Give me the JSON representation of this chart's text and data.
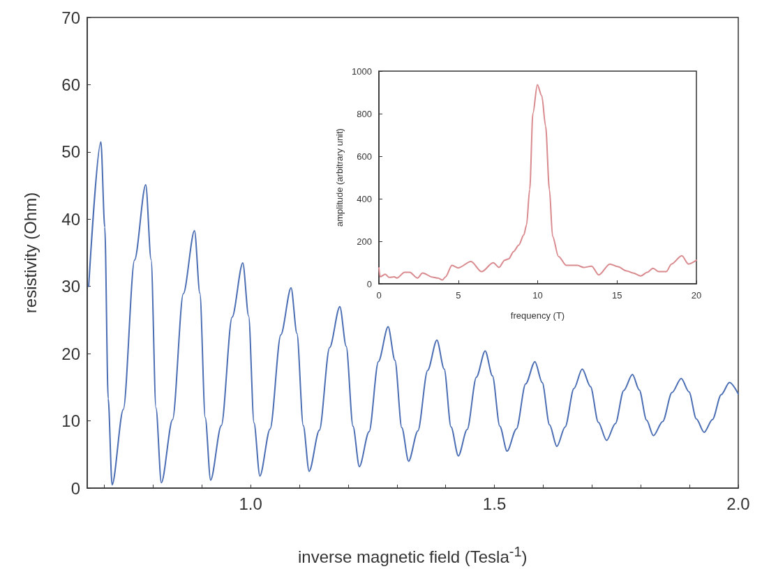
{
  "chart_data": [
    {
      "type": "line",
      "xlabel": "inverse magnetic field (Tesla$^{-1}$)",
      "ylabel": "resistivity (Ohm)",
      "xlim": [
        0.665,
        2.0
      ],
      "xticks": [
        {
          "value": 0.7,
          "label": null
        },
        {
          "value": 0.8,
          "label": null
        },
        {
          "value": 0.9,
          "label": null
        },
        {
          "value": 1.0,
          "label": "1.0"
        },
        {
          "value": 1.1,
          "label": null
        },
        {
          "value": 1.2,
          "label": null
        },
        {
          "value": 1.3,
          "label": null
        },
        {
          "value": 1.4,
          "label": null
        },
        {
          "value": 1.5,
          "label": "1.5"
        },
        {
          "value": 1.6,
          "label": null
        },
        {
          "value": 1.7,
          "label": null
        },
        {
          "value": 1.8,
          "label": null
        },
        {
          "value": 1.9,
          "label": null
        },
        {
          "value": 2.0,
          "label": "2.0"
        }
      ],
      "ylim": [
        0,
        70
      ],
      "yticks": [
        0,
        10,
        20,
        30,
        40,
        50,
        60,
        70
      ],
      "series": [
        {
          "color": "#4a6db3",
          "x": [
            0.668,
            0.693,
            0.701,
            0.708,
            0.716,
            0.739,
            0.762,
            0.785,
            0.796,
            0.806,
            0.817,
            0.84,
            0.862,
            0.885,
            0.896,
            0.907,
            0.918,
            0.94,
            0.962,
            0.984,
            0.996,
            1.007,
            1.019,
            1.04,
            1.062,
            1.083,
            1.095,
            1.108,
            1.12,
            1.141,
            1.162,
            1.183,
            1.196,
            1.21,
            1.223,
            1.243,
            1.262,
            1.282,
            1.296,
            1.31,
            1.324,
            1.343,
            1.363,
            1.382,
            1.397,
            1.411,
            1.426,
            1.444,
            1.463,
            1.481,
            1.496,
            1.511,
            1.526,
            1.545,
            1.564,
            1.583,
            1.598,
            1.613,
            1.628,
            1.645,
            1.663,
            1.68,
            1.697,
            1.713,
            1.73,
            1.748,
            1.765,
            1.783,
            1.797,
            1.812,
            1.826,
            1.845,
            1.864,
            1.883,
            1.899,
            1.914,
            1.93,
            1.947,
            1.965,
            1.982,
            2.0
          ],
          "values": [
            30,
            51.5,
            38.8,
            13.3,
            0.5,
            11.7,
            33.9,
            45.1,
            34.0,
            11.9,
            0.8,
            10.2,
            28.9,
            38.3,
            29.0,
            10.5,
            1.2,
            9.3,
            25.4,
            33.5,
            25.6,
            9.7,
            1.8,
            8.8,
            22.8,
            29.8,
            23.0,
            9.3,
            2.5,
            8.6,
            20.9,
            27.0,
            21.1,
            9.2,
            3.2,
            8.4,
            18.8,
            24.0,
            19.0,
            9.0,
            4.0,
            8.5,
            17.5,
            22.0,
            17.7,
            9.1,
            4.8,
            8.7,
            16.5,
            20.4,
            16.7,
            9.2,
            5.5,
            8.8,
            15.5,
            18.8,
            15.7,
            9.4,
            6.2,
            9.1,
            14.8,
            17.7,
            15.1,
            9.8,
            7.1,
            9.6,
            14.5,
            16.9,
            14.6,
            10.1,
            7.8,
            9.9,
            14.2,
            16.3,
            14.3,
            10.3,
            8.3,
            10.2,
            13.9,
            15.7,
            14.0
          ]
        }
      ]
    },
    {
      "type": "line",
      "xlabel": "frequency (T)",
      "ylabel": "amplitude (arbitrary unit)",
      "xlim": [
        0,
        20
      ],
      "xticks": [
        0,
        5,
        10,
        15,
        20
      ],
      "ylim": [
        0,
        1000
      ],
      "yticks": [
        0,
        200,
        400,
        600,
        800,
        1000
      ],
      "series": [
        {
          "color": "#d98a8e",
          "x": [
            0,
            0.08,
            0.4,
            0.65,
            0.97,
            1.13,
            1.62,
            1.94,
            2.43,
            2.75,
            3.4,
            3.72,
            4.0,
            4.2,
            4.6,
            5.0,
            5.8,
            6.47,
            7.2,
            7.57,
            7.92,
            8.17,
            8.49,
            8.81,
            9.13,
            9.3,
            9.5,
            9.7,
            9.98,
            10.26,
            10.5,
            10.74,
            10.94,
            11.31,
            11.8,
            12.1,
            12.5,
            12.9,
            13.4,
            13.85,
            14.55,
            15.03,
            15.6,
            16.0,
            16.5,
            16.9,
            17.27,
            17.63,
            18.1,
            18.43,
            19.08,
            19.5,
            20
          ],
          "values": [
            75,
            33,
            45,
            30,
            33,
            27,
            54,
            54,
            27,
            51,
            31,
            27,
            18,
            33,
            87,
            75,
            105,
            57,
            99,
            77,
            111,
            117,
            152,
            182,
            230,
            277,
            444,
            801,
            936,
            884,
            742,
            444,
            224,
            129,
            87,
            87,
            87,
            77,
            83,
            42,
            93,
            81,
            61,
            51,
            37,
            54,
            73,
            57,
            57,
            93,
            132,
            93,
            111
          ]
        }
      ]
    }
  ]
}
